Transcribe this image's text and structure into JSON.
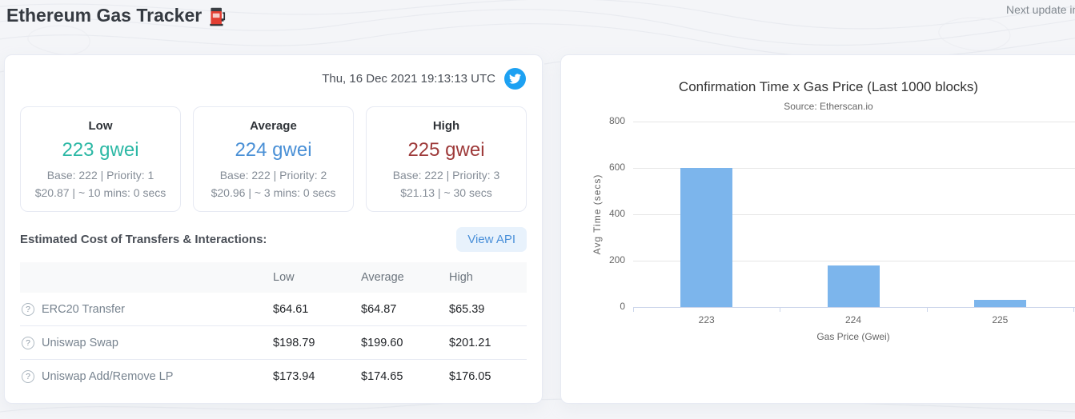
{
  "page": {
    "title": "Ethereum Gas Tracker",
    "next_update_label": "Next update in"
  },
  "icons": {
    "help_glyph": "?"
  },
  "left_panel": {
    "timestamp": "Thu, 16 Dec 2021 19:13:13 UTC",
    "gas_cards": [
      {
        "label": "Low",
        "value": "223 gwei",
        "base_priority": "Base: 222 | Priority: 1",
        "cost_time": "$20.87 | ~ 10 mins: 0 secs",
        "color": "#2cb8a5"
      },
      {
        "label": "Average",
        "value": "224 gwei",
        "base_priority": "Base: 222 | Priority: 2",
        "cost_time": "$20.96 | ~ 3 mins: 0 secs",
        "color": "#4a90d6"
      },
      {
        "label": "High",
        "value": "225 gwei",
        "base_priority": "Base: 222 | Priority: 3",
        "cost_time": "$21.13 | ~ 30 secs",
        "color": "#9e3a3a"
      }
    ],
    "section_title": "Estimated Cost of Transfers & Interactions:",
    "view_api_label": "View API",
    "table": {
      "headers": {
        "low": "Low",
        "average": "Average",
        "high": "High"
      },
      "rows": [
        {
          "label": "ERC20 Transfer",
          "low": "$64.61",
          "average": "$64.87",
          "high": "$65.39"
        },
        {
          "label": "Uniswap Swap",
          "low": "$198.79",
          "average": "$199.60",
          "high": "$201.21"
        },
        {
          "label": "Uniswap Add/Remove LP",
          "low": "$173.94",
          "average": "$174.65",
          "high": "$176.05"
        }
      ]
    }
  },
  "chart_data": {
    "type": "bar",
    "title": "Confirmation Time x Gas Price (Last 1000 blocks)",
    "subtitle": "Source: Etherscan.io",
    "categories": [
      "223",
      "224",
      "225"
    ],
    "values": [
      600,
      180,
      30
    ],
    "xlabel": "Gas Price (Gwei)",
    "ylabel": "Avg Time (secs)",
    "ylim": [
      0,
      800
    ],
    "yticks": [
      0,
      200,
      400,
      600,
      800
    ],
    "bar_color": "#7cb5ec",
    "grid": true,
    "legend": false
  }
}
